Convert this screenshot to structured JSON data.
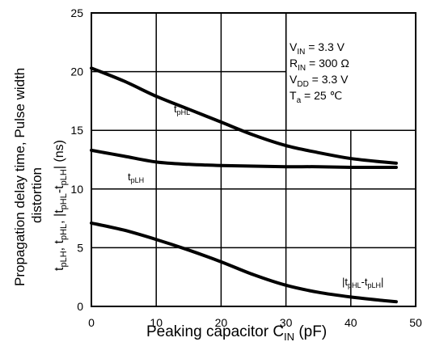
{
  "chart_data": {
    "type": "line",
    "xlabel": "Peaking capacitor C_IN (pF)",
    "ylabel": "Propagation delay time, Pulse width distortion",
    "ylabel2": "tpLH, tpHL, |tpHL-tpLH| (ns)",
    "xlim": [
      0,
      50
    ],
    "ylim": [
      0,
      25
    ],
    "x_ticks": [
      0,
      10,
      20,
      30,
      40,
      50
    ],
    "y_ticks": [
      0,
      5,
      10,
      15,
      20,
      25
    ],
    "grid": true,
    "series": [
      {
        "name": "tpHL",
        "x": [
          0,
          5,
          10,
          15,
          20,
          25,
          30,
          35,
          40,
          45,
          47
        ],
        "y": [
          20.3,
          19.2,
          17.9,
          16.8,
          15.7,
          14.6,
          13.7,
          13.1,
          12.6,
          12.3,
          12.2
        ]
      },
      {
        "name": "tpLH",
        "x": [
          0,
          5,
          10,
          15,
          20,
          25,
          30,
          35,
          40,
          45,
          47
        ],
        "y": [
          13.3,
          12.8,
          12.3,
          12.1,
          12.0,
          11.95,
          11.9,
          11.9,
          11.85,
          11.85,
          11.85
        ]
      },
      {
        "name": "|tpHL-tpLH|",
        "x": [
          0,
          5,
          10,
          15,
          20,
          25,
          30,
          35,
          40,
          45,
          47
        ],
        "y": [
          7.1,
          6.5,
          5.7,
          4.8,
          3.8,
          2.7,
          1.8,
          1.2,
          0.8,
          0.5,
          0.4
        ]
      }
    ],
    "conditions": [
      {
        "name": "V",
        "sub": "IN",
        "value": " = 3.3 V"
      },
      {
        "name": "R",
        "sub": "IN",
        "value": " = 300 Ω"
      },
      {
        "name": "V",
        "sub": "DD",
        "value": " = 3.3 V"
      },
      {
        "name": "T",
        "sub": "a",
        "value": " = 25 ℃"
      }
    ]
  }
}
